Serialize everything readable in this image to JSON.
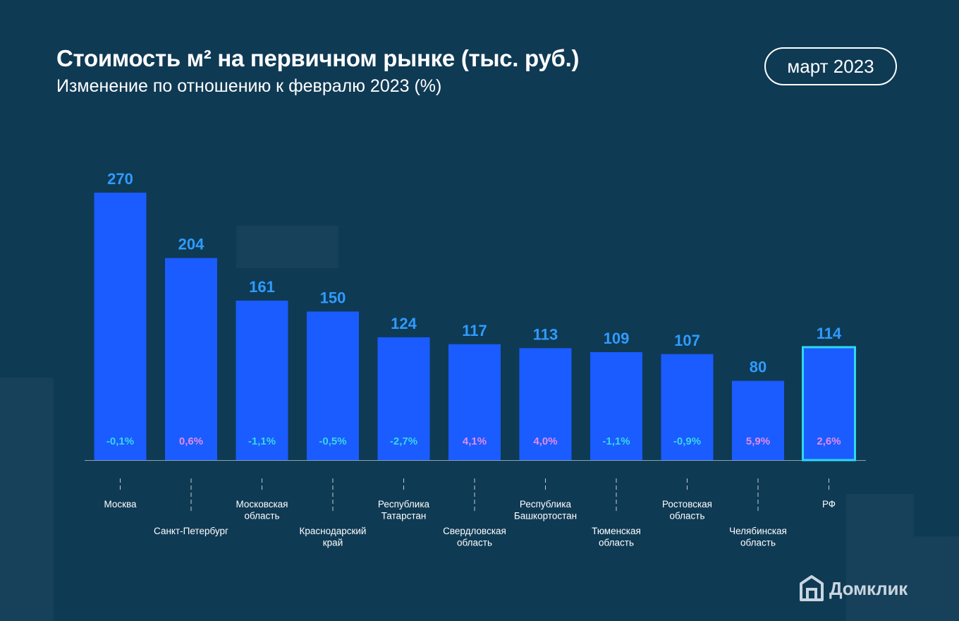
{
  "header": {
    "title": "Стоимость м² на первичном рынке (тыс. руб.)",
    "subtitle": "Изменение по отношению к февралю 2023 (%)",
    "date_badge": "март 2023"
  },
  "brand": {
    "name": "Домклик",
    "icon": "house-icon"
  },
  "colors": {
    "background": "#0f3a54",
    "bar": "#1a5cff",
    "value_label": "#2f9bff",
    "negative_change": "#39d6e8",
    "positive_change": "#e58ae8",
    "highlight_border": "#2fd8f0"
  },
  "chart_data": {
    "type": "bar",
    "title": "Стоимость м² на первичном рынке (тыс. руб.)",
    "subtitle": "Изменение по отношению к февралю 2023 (%)",
    "xlabel": "",
    "ylabel": "",
    "ylim": [
      0,
      270
    ],
    "grid": false,
    "categories": [
      [
        "Москва"
      ],
      [
        "Санкт-Петербург"
      ],
      [
        "Московская",
        "область"
      ],
      [
        "Краснодарский",
        "край"
      ],
      [
        "Республика",
        "Татарстан"
      ],
      [
        "Свердловская",
        "область"
      ],
      [
        "Республика",
        "Башкортостан"
      ],
      [
        "Тюменская",
        "область"
      ],
      [
        "Ростовская",
        "область"
      ],
      [
        "Челябинская",
        "область"
      ],
      [
        "РФ"
      ]
    ],
    "values": [
      270,
      204,
      161,
      150,
      124,
      117,
      113,
      109,
      107,
      80,
      114
    ],
    "value_labels": [
      "270",
      "204",
      "161",
      "150",
      "124",
      "117",
      "113",
      "109",
      "107",
      "80",
      "114"
    ],
    "change_pct": [
      -0.1,
      0.6,
      -1.1,
      -0.5,
      -2.7,
      4.1,
      4.0,
      -1.1,
      -0.9,
      5.9,
      2.6
    ],
    "change_labels": [
      "-0,1%",
      "0,6%",
      "-1,1%",
      "-0,5%",
      "-2,7%",
      "4,1%",
      "4,0%",
      "-1,1%",
      "-0,9%",
      "5,9%",
      "2,6%"
    ],
    "label_rows": [
      "top",
      "bottom",
      "top",
      "bottom",
      "top",
      "bottom",
      "top",
      "bottom",
      "top",
      "bottom",
      "top"
    ],
    "highlighted": [
      "РФ"
    ]
  }
}
